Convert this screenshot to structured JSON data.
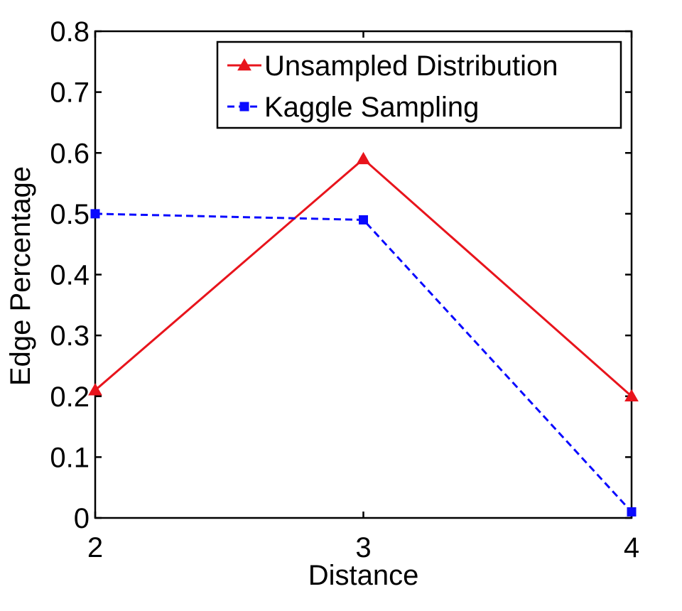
{
  "chart_data": {
    "type": "line",
    "title": "",
    "xlabel": "Distance",
    "ylabel": "Edge Percentage",
    "x": [
      2,
      3,
      4
    ],
    "xlim": [
      2,
      4
    ],
    "ylim": [
      0,
      0.8
    ],
    "xticks": [
      "2",
      "3",
      "4"
    ],
    "yticks": [
      "0",
      "0.1",
      "0.2",
      "0.3",
      "0.4",
      "0.5",
      "0.6",
      "0.7",
      "0.8"
    ],
    "grid": false,
    "legend_position": "top-right",
    "series": [
      {
        "name": "Unsampled Distribution",
        "values": [
          0.21,
          0.59,
          0.2
        ],
        "color": "#e8141c",
        "marker": "triangle",
        "line_style": "solid"
      },
      {
        "name": "Kaggle Sampling",
        "values": [
          0.5,
          0.49,
          0.01
        ],
        "color": "#0a0aff",
        "marker": "square",
        "line_style": "dashed"
      }
    ]
  }
}
